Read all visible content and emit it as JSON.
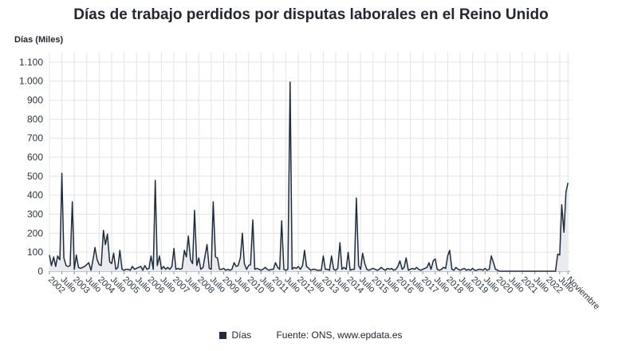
{
  "chart_data": {
    "type": "area",
    "title": "Días de trabajo perdidos por disputas laborales en el Reino Unido",
    "ylabel": "Días (Miles)",
    "xlabel": "",
    "ylim": [
      0,
      1150
    ],
    "yticks": [
      0,
      100,
      200,
      300,
      400,
      500,
      600,
      700,
      800,
      900,
      1000,
      1100
    ],
    "ytick_labels": [
      "0",
      "100",
      "200",
      "300",
      "400",
      "500",
      "600",
      "700",
      "800",
      "900",
      "1.000",
      "1.100"
    ],
    "xlim": [
      2002.0,
      2022.92
    ],
    "xticks": [
      {
        "x": 2002.0,
        "label": "2002"
      },
      {
        "x": 2002.5,
        "label": "Julio"
      },
      {
        "x": 2003.0,
        "label": "2003"
      },
      {
        "x": 2003.5,
        "label": "Julio"
      },
      {
        "x": 2004.0,
        "label": "2004"
      },
      {
        "x": 2004.5,
        "label": "Julio"
      },
      {
        "x": 2005.0,
        "label": "2005"
      },
      {
        "x": 2005.5,
        "label": "Julio"
      },
      {
        "x": 2006.0,
        "label": "2006"
      },
      {
        "x": 2006.5,
        "label": "Julio"
      },
      {
        "x": 2007.0,
        "label": "2007"
      },
      {
        "x": 2007.5,
        "label": "Julio"
      },
      {
        "x": 2008.0,
        "label": "2008"
      },
      {
        "x": 2008.5,
        "label": "Julio"
      },
      {
        "x": 2009.0,
        "label": "2009"
      },
      {
        "x": 2009.5,
        "label": "Julio"
      },
      {
        "x": 2010.0,
        "label": "2010"
      },
      {
        "x": 2010.5,
        "label": "Julio"
      },
      {
        "x": 2011.0,
        "label": "2011"
      },
      {
        "x": 2011.5,
        "label": "Julio"
      },
      {
        "x": 2012.0,
        "label": "2012"
      },
      {
        "x": 2012.5,
        "label": "Julio"
      },
      {
        "x": 2013.0,
        "label": "2013"
      },
      {
        "x": 2013.5,
        "label": "Julio"
      },
      {
        "x": 2014.0,
        "label": "2014"
      },
      {
        "x": 2014.5,
        "label": "Julio"
      },
      {
        "x": 2015.0,
        "label": "2015"
      },
      {
        "x": 2015.5,
        "label": "Julio"
      },
      {
        "x": 2016.0,
        "label": "2016"
      },
      {
        "x": 2016.5,
        "label": "Julio"
      },
      {
        "x": 2017.0,
        "label": "2017"
      },
      {
        "x": 2017.5,
        "label": "Julio"
      },
      {
        "x": 2018.0,
        "label": "2018"
      },
      {
        "x": 2018.5,
        "label": "Julio"
      },
      {
        "x": 2019.0,
        "label": "2019"
      },
      {
        "x": 2019.5,
        "label": "Julio"
      },
      {
        "x": 2020.0,
        "label": "2020"
      },
      {
        "x": 2020.5,
        "label": "Julio"
      },
      {
        "x": 2021.0,
        "label": "2021"
      },
      {
        "x": 2021.5,
        "label": "Julio"
      },
      {
        "x": 2022.0,
        "label": "2022"
      },
      {
        "x": 2022.5,
        "label": "Julio"
      },
      {
        "x": 2022.83,
        "label": "Noviembre"
      }
    ],
    "series": [
      {
        "name": "Días",
        "color": "#1f2d3d",
        "fill": "#e9ebee",
        "points": [
          [
            2002.0,
            85
          ],
          [
            2002.08,
            30
          ],
          [
            2002.17,
            75
          ],
          [
            2002.25,
            25
          ],
          [
            2002.33,
            80
          ],
          [
            2002.42,
            60
          ],
          [
            2002.5,
            515
          ],
          [
            2002.58,
            70
          ],
          [
            2002.67,
            30
          ],
          [
            2002.75,
            25
          ],
          [
            2002.83,
            30
          ],
          [
            2002.92,
            365
          ],
          [
            2003.0,
            10
          ],
          [
            2003.08,
            85
          ],
          [
            2003.17,
            20
          ],
          [
            2003.25,
            15
          ],
          [
            2003.33,
            20
          ],
          [
            2003.42,
            25
          ],
          [
            2003.5,
            35
          ],
          [
            2003.58,
            45
          ],
          [
            2003.67,
            5
          ],
          [
            2003.75,
            60
          ],
          [
            2003.83,
            125
          ],
          [
            2003.92,
            60
          ],
          [
            2004.0,
            35
          ],
          [
            2004.08,
            30
          ],
          [
            2004.17,
            215
          ],
          [
            2004.25,
            140
          ],
          [
            2004.33,
            195
          ],
          [
            2004.42,
            50
          ],
          [
            2004.5,
            40
          ],
          [
            2004.58,
            95
          ],
          [
            2004.67,
            10
          ],
          [
            2004.75,
            20
          ],
          [
            2004.83,
            110
          ],
          [
            2004.92,
            10
          ],
          [
            2005.0,
            5
          ],
          [
            2005.08,
            10
          ],
          [
            2005.17,
            10
          ],
          [
            2005.25,
            5
          ],
          [
            2005.33,
            25
          ],
          [
            2005.42,
            10
          ],
          [
            2005.5,
            15
          ],
          [
            2005.58,
            20
          ],
          [
            2005.67,
            25
          ],
          [
            2005.75,
            5
          ],
          [
            2005.83,
            30
          ],
          [
            2005.92,
            10
          ],
          [
            2006.0,
            15
          ],
          [
            2006.08,
            80
          ],
          [
            2006.17,
            10
          ],
          [
            2006.25,
            478
          ],
          [
            2006.33,
            30
          ],
          [
            2006.42,
            80
          ],
          [
            2006.5,
            10
          ],
          [
            2006.58,
            25
          ],
          [
            2006.67,
            10
          ],
          [
            2006.75,
            20
          ],
          [
            2006.83,
            10
          ],
          [
            2006.92,
            25
          ],
          [
            2007.0,
            120
          ],
          [
            2007.08,
            10
          ],
          [
            2007.17,
            15
          ],
          [
            2007.25,
            10
          ],
          [
            2007.33,
            15
          ],
          [
            2007.42,
            110
          ],
          [
            2007.5,
            75
          ],
          [
            2007.58,
            185
          ],
          [
            2007.67,
            60
          ],
          [
            2007.75,
            40
          ],
          [
            2007.83,
            320
          ],
          [
            2007.92,
            30
          ],
          [
            2008.0,
            70
          ],
          [
            2008.08,
            10
          ],
          [
            2008.17,
            20
          ],
          [
            2008.25,
            80
          ],
          [
            2008.33,
            140
          ],
          [
            2008.42,
            15
          ],
          [
            2008.5,
            10
          ],
          [
            2008.58,
            365
          ],
          [
            2008.67,
            75
          ],
          [
            2008.75,
            70
          ],
          [
            2008.83,
            10
          ],
          [
            2008.92,
            10
          ],
          [
            2009.0,
            15
          ],
          [
            2009.08,
            5
          ],
          [
            2009.17,
            10
          ],
          [
            2009.25,
            5
          ],
          [
            2009.33,
            10
          ],
          [
            2009.42,
            45
          ],
          [
            2009.5,
            25
          ],
          [
            2009.58,
            30
          ],
          [
            2009.67,
            70
          ],
          [
            2009.75,
            200
          ],
          [
            2009.83,
            40
          ],
          [
            2009.92,
            10
          ],
          [
            2010.0,
            30
          ],
          [
            2010.08,
            35
          ],
          [
            2010.17,
            270
          ],
          [
            2010.25,
            10
          ],
          [
            2010.33,
            15
          ],
          [
            2010.42,
            10
          ],
          [
            2010.5,
            5
          ],
          [
            2010.58,
            10
          ],
          [
            2010.67,
            20
          ],
          [
            2010.75,
            10
          ],
          [
            2010.83,
            5
          ],
          [
            2010.92,
            10
          ],
          [
            2011.0,
            10
          ],
          [
            2011.08,
            45
          ],
          [
            2011.17,
            20
          ],
          [
            2011.25,
            10
          ],
          [
            2011.33,
            265
          ],
          [
            2011.42,
            10
          ],
          [
            2011.5,
            5
          ],
          [
            2011.58,
            10
          ],
          [
            2011.67,
            995
          ],
          [
            2011.75,
            10
          ],
          [
            2011.83,
            20
          ],
          [
            2011.92,
            15
          ],
          [
            2012.0,
            25
          ],
          [
            2012.08,
            10
          ],
          [
            2012.17,
            30
          ],
          [
            2012.25,
            110
          ],
          [
            2012.33,
            25
          ],
          [
            2012.42,
            15
          ],
          [
            2012.5,
            5
          ],
          [
            2012.58,
            10
          ],
          [
            2012.67,
            10
          ],
          [
            2012.75,
            5
          ],
          [
            2012.83,
            5
          ],
          [
            2012.92,
            5
          ],
          [
            2013.0,
            80
          ],
          [
            2013.08,
            10
          ],
          [
            2013.17,
            10
          ],
          [
            2013.25,
            5
          ],
          [
            2013.33,
            80
          ],
          [
            2013.42,
            10
          ],
          [
            2013.5,
            5
          ],
          [
            2013.58,
            15
          ],
          [
            2013.67,
            150
          ],
          [
            2013.75,
            10
          ],
          [
            2013.83,
            20
          ],
          [
            2013.92,
            10
          ],
          [
            2014.0,
            100
          ],
          [
            2014.08,
            5
          ],
          [
            2014.17,
            10
          ],
          [
            2014.25,
            10
          ],
          [
            2014.33,
            385
          ],
          [
            2014.42,
            30
          ],
          [
            2014.5,
            10
          ],
          [
            2014.58,
            95
          ],
          [
            2014.67,
            40
          ],
          [
            2014.75,
            10
          ],
          [
            2014.83,
            5
          ],
          [
            2014.92,
            10
          ],
          [
            2015.0,
            15
          ],
          [
            2015.08,
            10
          ],
          [
            2015.17,
            5
          ],
          [
            2015.25,
            10
          ],
          [
            2015.33,
            20
          ],
          [
            2015.42,
            10
          ],
          [
            2015.5,
            5
          ],
          [
            2015.58,
            15
          ],
          [
            2015.67,
            10
          ],
          [
            2015.75,
            15
          ],
          [
            2015.83,
            5
          ],
          [
            2015.92,
            10
          ],
          [
            2016.0,
            25
          ],
          [
            2016.08,
            55
          ],
          [
            2016.17,
            10
          ],
          [
            2016.25,
            20
          ],
          [
            2016.33,
            70
          ],
          [
            2016.42,
            5
          ],
          [
            2016.5,
            10
          ],
          [
            2016.58,
            15
          ],
          [
            2016.67,
            10
          ],
          [
            2016.75,
            20
          ],
          [
            2016.83,
            10
          ],
          [
            2016.92,
            5
          ],
          [
            2017.0,
            10
          ],
          [
            2017.08,
            15
          ],
          [
            2017.17,
            20
          ],
          [
            2017.25,
            45
          ],
          [
            2017.33,
            10
          ],
          [
            2017.42,
            55
          ],
          [
            2017.5,
            65
          ],
          [
            2017.58,
            10
          ],
          [
            2017.67,
            5
          ],
          [
            2017.75,
            10
          ],
          [
            2017.83,
            20
          ],
          [
            2017.92,
            15
          ],
          [
            2018.0,
            80
          ],
          [
            2018.08,
            110
          ],
          [
            2018.17,
            10
          ],
          [
            2018.25,
            5
          ],
          [
            2018.33,
            20
          ],
          [
            2018.42,
            10
          ],
          [
            2018.5,
            5
          ],
          [
            2018.58,
            10
          ],
          [
            2018.67,
            15
          ],
          [
            2018.75,
            5
          ],
          [
            2018.83,
            10
          ],
          [
            2018.92,
            5
          ],
          [
            2019.0,
            15
          ],
          [
            2019.08,
            5
          ],
          [
            2019.17,
            5
          ],
          [
            2019.25,
            10
          ],
          [
            2019.33,
            10
          ],
          [
            2019.42,
            5
          ],
          [
            2019.5,
            15
          ],
          [
            2019.58,
            5
          ],
          [
            2019.67,
            10
          ],
          [
            2019.75,
            80
          ],
          [
            2019.83,
            50
          ],
          [
            2019.92,
            10
          ],
          [
            2020.0,
            5
          ],
          [
            2020.08,
            0
          ],
          [
            2020.17,
            0
          ],
          [
            2020.25,
            0
          ],
          [
            2020.33,
            0
          ],
          [
            2020.42,
            0
          ],
          [
            2020.5,
            0
          ],
          [
            2020.58,
            0
          ],
          [
            2020.67,
            0
          ],
          [
            2020.75,
            0
          ],
          [
            2020.83,
            0
          ],
          [
            2020.92,
            0
          ],
          [
            2021.0,
            0
          ],
          [
            2021.08,
            0
          ],
          [
            2021.17,
            0
          ],
          [
            2021.25,
            0
          ],
          [
            2021.33,
            0
          ],
          [
            2021.42,
            0
          ],
          [
            2021.5,
            0
          ],
          [
            2021.58,
            0
          ],
          [
            2021.67,
            0
          ],
          [
            2021.75,
            0
          ],
          [
            2021.83,
            0
          ],
          [
            2021.92,
            0
          ],
          [
            2022.0,
            0
          ],
          [
            2022.08,
            0
          ],
          [
            2022.17,
            0
          ],
          [
            2022.25,
            0
          ],
          [
            2022.33,
            0
          ],
          [
            2022.42,
            90
          ],
          [
            2022.5,
            85
          ],
          [
            2022.58,
            350
          ],
          [
            2022.67,
            205
          ],
          [
            2022.75,
            415
          ],
          [
            2022.83,
            465
          ]
        ]
      }
    ],
    "legend": {
      "label": "Días",
      "source": "Fuente: ONS, www.epdata.es",
      "position": "bottom"
    }
  }
}
